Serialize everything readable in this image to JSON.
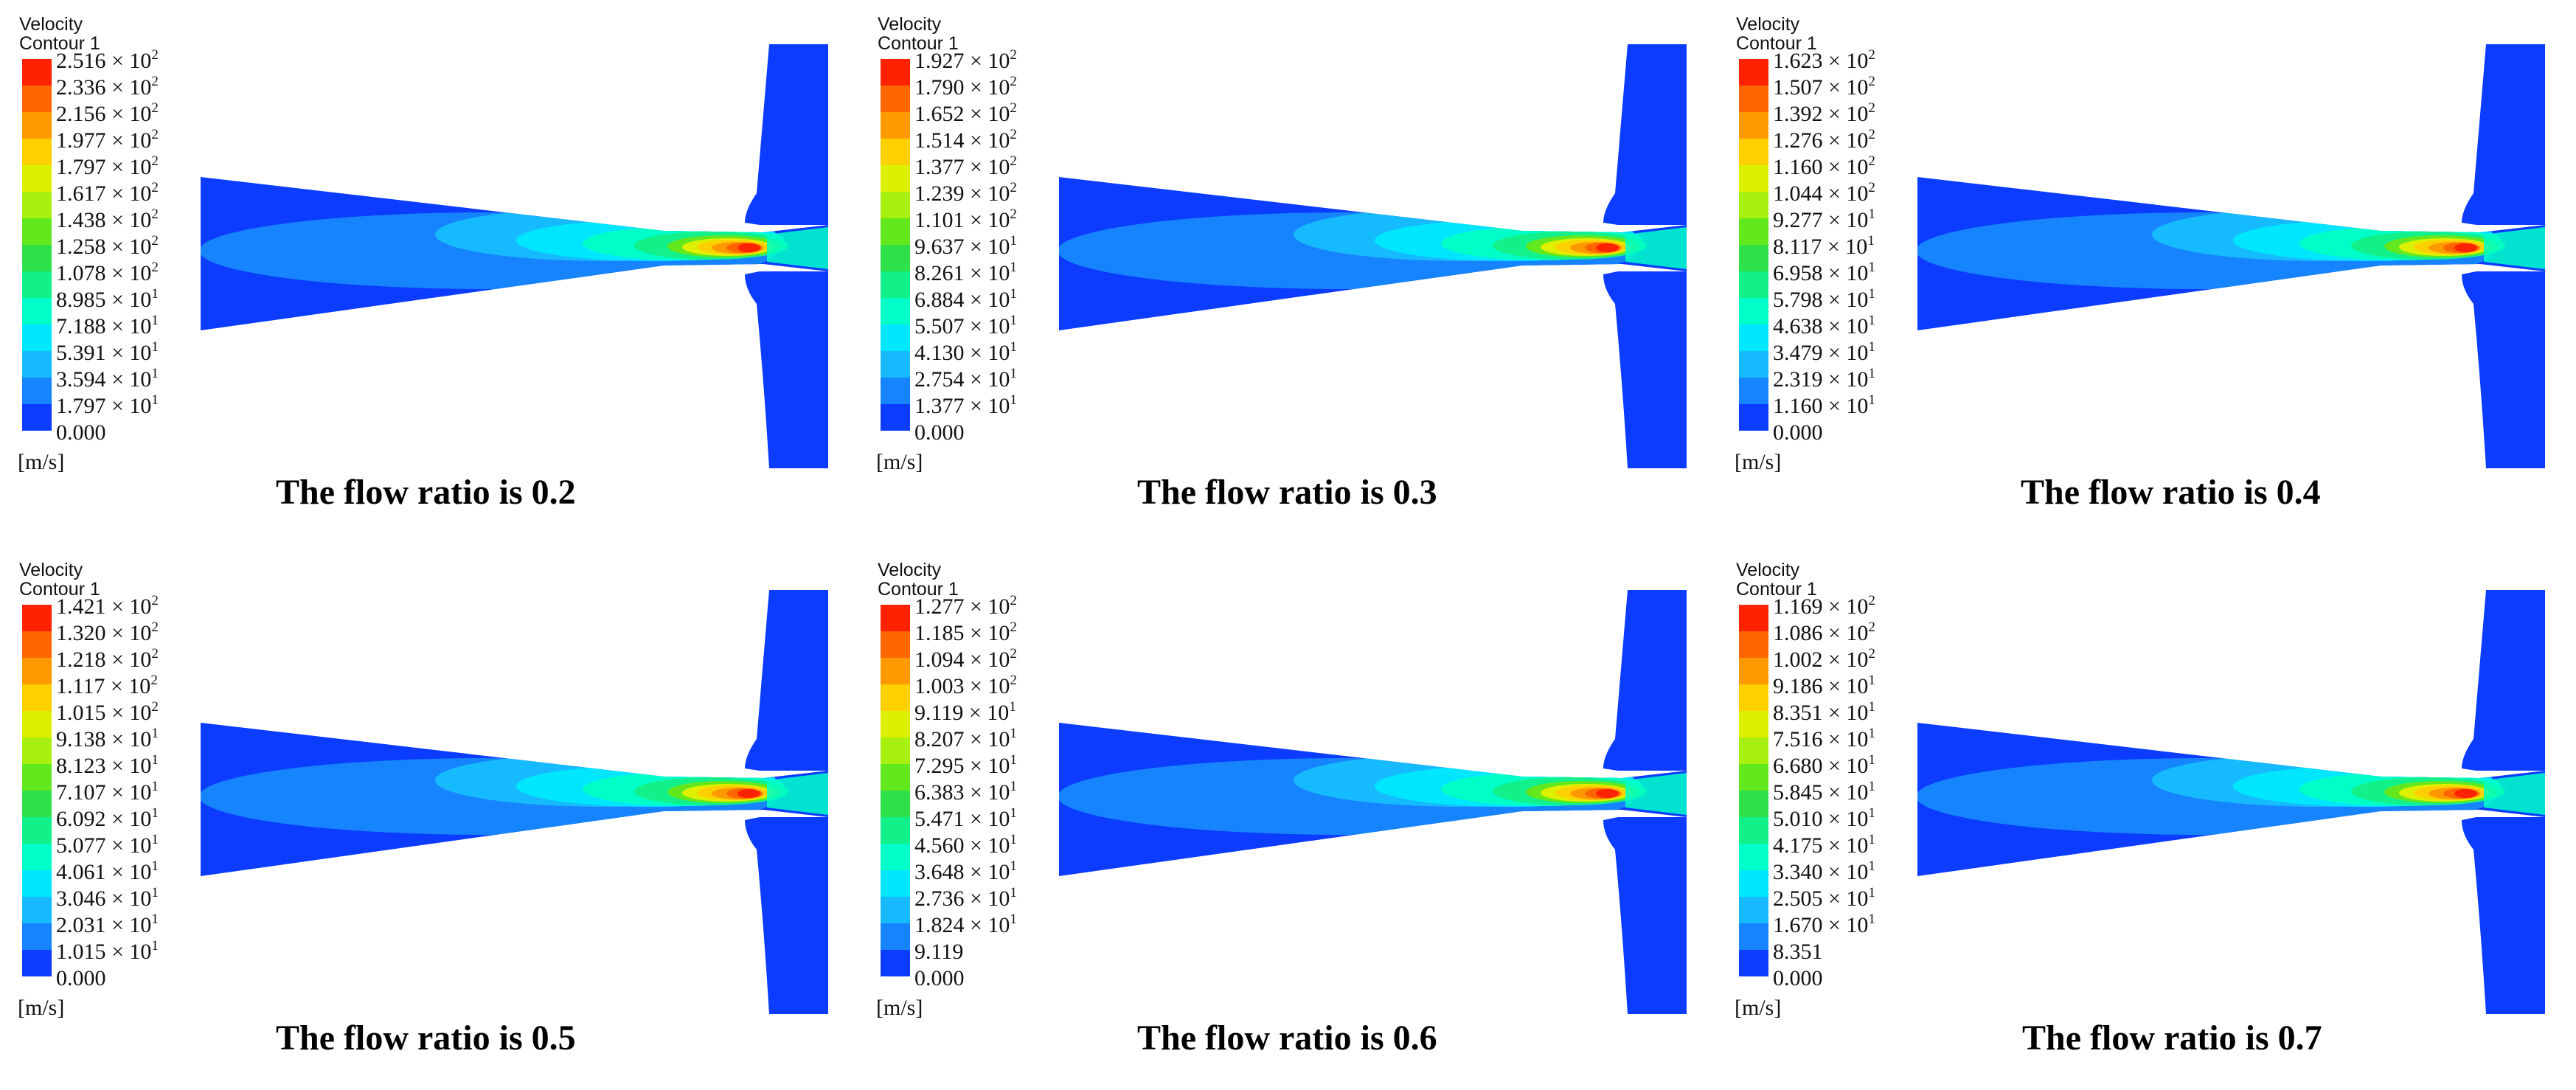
{
  "colors": [
    "#0000ff",
    "#0b3cff",
    "#1784ff",
    "#16baff",
    "#00e6ff",
    "#00ffc8",
    "#12f08a",
    "#2ee04a",
    "#63e81e",
    "#a8f00f",
    "#dcf000",
    "#ffd000",
    "#ff9900",
    "#ff6600",
    "#ff2200"
  ],
  "panels": [
    {
      "legend_title": "Velocity",
      "legend_subtitle": "Contour 1",
      "unit": "[m/s]",
      "caption": "The flow ratio is 0.2",
      "flow_ratio": 0.2,
      "ticks": [
        {
          "m": "2.516",
          "e": "2"
        },
        {
          "m": "2.336",
          "e": "2"
        },
        {
          "m": "2.156",
          "e": "2"
        },
        {
          "m": "1.977",
          "e": "2"
        },
        {
          "m": "1.797",
          "e": "2"
        },
        {
          "m": "1.617",
          "e": "2"
        },
        {
          "m": "1.438",
          "e": "2"
        },
        {
          "m": "1.258",
          "e": "2"
        },
        {
          "m": "1.078",
          "e": "2"
        },
        {
          "m": "8.985",
          "e": "1"
        },
        {
          "m": "7.188",
          "e": "1"
        },
        {
          "m": "5.391",
          "e": "1"
        },
        {
          "m": "3.594",
          "e": "1"
        },
        {
          "m": "1.797",
          "e": "1"
        },
        {
          "m": "0.000",
          "e": ""
        }
      ]
    },
    {
      "legend_title": "Velocity",
      "legend_subtitle": "Contour 1",
      "unit": "[m/s]",
      "caption": "The flow ratio is 0.3",
      "flow_ratio": 0.3,
      "ticks": [
        {
          "m": "1.927",
          "e": "2"
        },
        {
          "m": "1.790",
          "e": "2"
        },
        {
          "m": "1.652",
          "e": "2"
        },
        {
          "m": "1.514",
          "e": "2"
        },
        {
          "m": "1.377",
          "e": "2"
        },
        {
          "m": "1.239",
          "e": "2"
        },
        {
          "m": "1.101",
          "e": "2"
        },
        {
          "m": "9.637",
          "e": "1"
        },
        {
          "m": "8.261",
          "e": "1"
        },
        {
          "m": "6.884",
          "e": "1"
        },
        {
          "m": "5.507",
          "e": "1"
        },
        {
          "m": "4.130",
          "e": "1"
        },
        {
          "m": "2.754",
          "e": "1"
        },
        {
          "m": "1.377",
          "e": "1"
        },
        {
          "m": "0.000",
          "e": ""
        }
      ]
    },
    {
      "legend_title": "Velocity",
      "legend_subtitle": "Contour 1",
      "unit": "[m/s]",
      "caption": "The flow ratio is 0.4",
      "flow_ratio": 0.4,
      "ticks": [
        {
          "m": "1.623",
          "e": "2"
        },
        {
          "m": "1.507",
          "e": "2"
        },
        {
          "m": "1.392",
          "e": "2"
        },
        {
          "m": "1.276",
          "e": "2"
        },
        {
          "m": "1.160",
          "e": "2"
        },
        {
          "m": "1.044",
          "e": "2"
        },
        {
          "m": "9.277",
          "e": "1"
        },
        {
          "m": "8.117",
          "e": "1"
        },
        {
          "m": "6.958",
          "e": "1"
        },
        {
          "m": "5.798",
          "e": "1"
        },
        {
          "m": "4.638",
          "e": "1"
        },
        {
          "m": "3.479",
          "e": "1"
        },
        {
          "m": "2.319",
          "e": "1"
        },
        {
          "m": "1.160",
          "e": "1"
        },
        {
          "m": "0.000",
          "e": ""
        }
      ]
    },
    {
      "legend_title": "Velocity",
      "legend_subtitle": "Contour 1",
      "unit": "[m/s]",
      "caption": "The flow ratio is 0.5",
      "flow_ratio": 0.5,
      "ticks": [
        {
          "m": "1.421",
          "e": "2"
        },
        {
          "m": "1.320",
          "e": "2"
        },
        {
          "m": "1.218",
          "e": "2"
        },
        {
          "m": "1.117",
          "e": "2"
        },
        {
          "m": "1.015",
          "e": "2"
        },
        {
          "m": "9.138",
          "e": "1"
        },
        {
          "m": "8.123",
          "e": "1"
        },
        {
          "m": "7.107",
          "e": "1"
        },
        {
          "m": "6.092",
          "e": "1"
        },
        {
          "m": "5.077",
          "e": "1"
        },
        {
          "m": "4.061",
          "e": "1"
        },
        {
          "m": "3.046",
          "e": "1"
        },
        {
          "m": "2.031",
          "e": "1"
        },
        {
          "m": "1.015",
          "e": "1"
        },
        {
          "m": "0.000",
          "e": ""
        }
      ]
    },
    {
      "legend_title": "Velocity",
      "legend_subtitle": "Contour 1",
      "unit": "[m/s]",
      "caption": "The flow ratio is 0.6",
      "flow_ratio": 0.6,
      "ticks": [
        {
          "m": "1.277",
          "e": "2"
        },
        {
          "m": "1.185",
          "e": "2"
        },
        {
          "m": "1.094",
          "e": "2"
        },
        {
          "m": "1.003",
          "e": "2"
        },
        {
          "m": "9.119",
          "e": "1"
        },
        {
          "m": "8.207",
          "e": "1"
        },
        {
          "m": "7.295",
          "e": "1"
        },
        {
          "m": "6.383",
          "e": "1"
        },
        {
          "m": "5.471",
          "e": "1"
        },
        {
          "m": "4.560",
          "e": "1"
        },
        {
          "m": "3.648",
          "e": "1"
        },
        {
          "m": "2.736",
          "e": "1"
        },
        {
          "m": "1.824",
          "e": "1"
        },
        {
          "m": "9.119",
          "e": ""
        },
        {
          "m": "0.000",
          "e": ""
        }
      ]
    },
    {
      "legend_title": "Velocity",
      "legend_subtitle": "Contour 1",
      "unit": "[m/s]",
      "caption": "The flow ratio is 0.7",
      "flow_ratio": 0.7,
      "ticks": [
        {
          "m": "1.169",
          "e": "2"
        },
        {
          "m": "1.086",
          "e": "2"
        },
        {
          "m": "1.002",
          "e": "2"
        },
        {
          "m": "9.186",
          "e": "1"
        },
        {
          "m": "8.351",
          "e": "1"
        },
        {
          "m": "7.516",
          "e": "1"
        },
        {
          "m": "6.680",
          "e": "1"
        },
        {
          "m": "5.845",
          "e": "1"
        },
        {
          "m": "5.010",
          "e": "1"
        },
        {
          "m": "4.175",
          "e": "1"
        },
        {
          "m": "3.340",
          "e": "1"
        },
        {
          "m": "2.505",
          "e": "1"
        },
        {
          "m": "1.670",
          "e": "1"
        },
        {
          "m": "8.351",
          "e": ""
        },
        {
          "m": "0.000",
          "e": ""
        }
      ]
    }
  ]
}
